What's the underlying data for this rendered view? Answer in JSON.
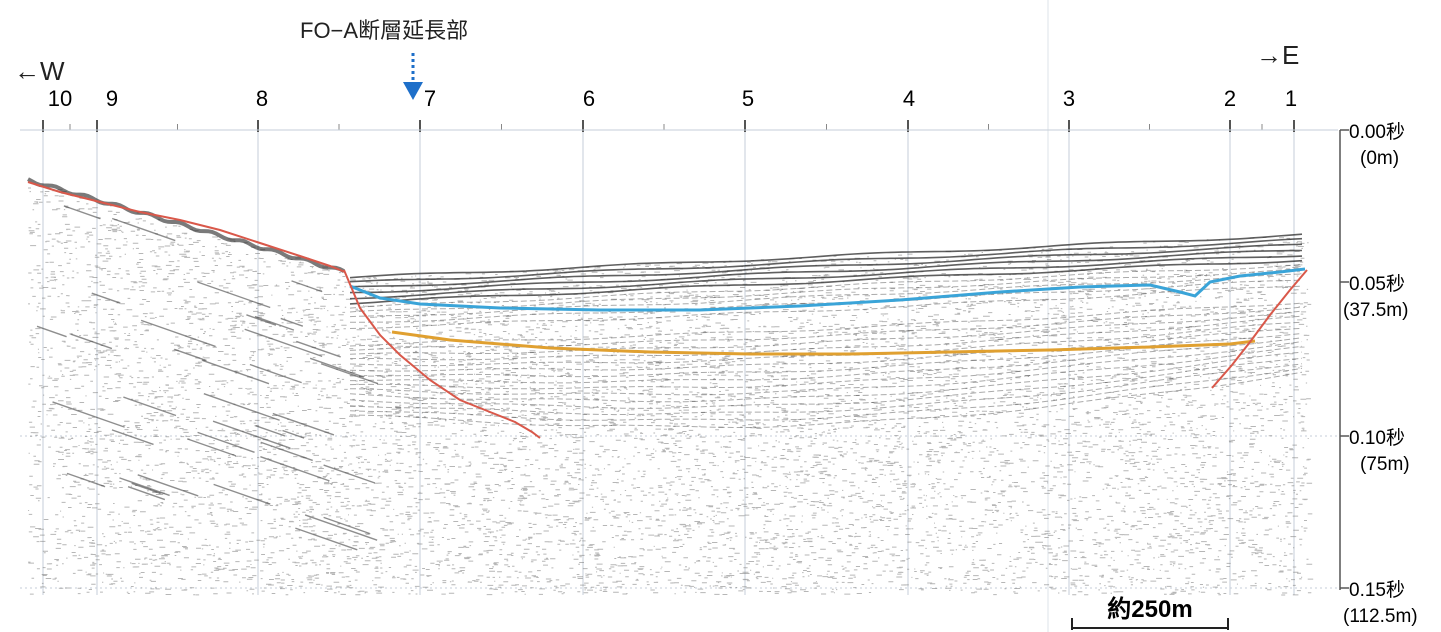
{
  "fault_label": "FO−A断層延長部",
  "direction_west": "←W",
  "direction_east": "→E",
  "shot_points": [
    "10",
    "9",
    "8",
    "7",
    "6",
    "5",
    "4",
    "3",
    "2",
    "1"
  ],
  "depth_axis": [
    {
      "time": "0.00秒",
      "depth": "(0m)"
    },
    {
      "time": "0.05秒",
      "depth": "(37.5m)"
    },
    {
      "time": "0.10秒",
      "depth": "(75m)"
    },
    {
      "time": "0.15秒",
      "depth": "(112.5m)"
    }
  ],
  "scale_label": "約250m",
  "colors": {
    "fault_arrow": "#1e6fc9",
    "horizon_blue": "#3aa4d8",
    "horizon_orange": "#e0a030",
    "fault_red": "#d9584a",
    "seabed_red": "#d9584a",
    "reflector": "#2a2a2a",
    "grid": "#bcc6d0"
  }
}
